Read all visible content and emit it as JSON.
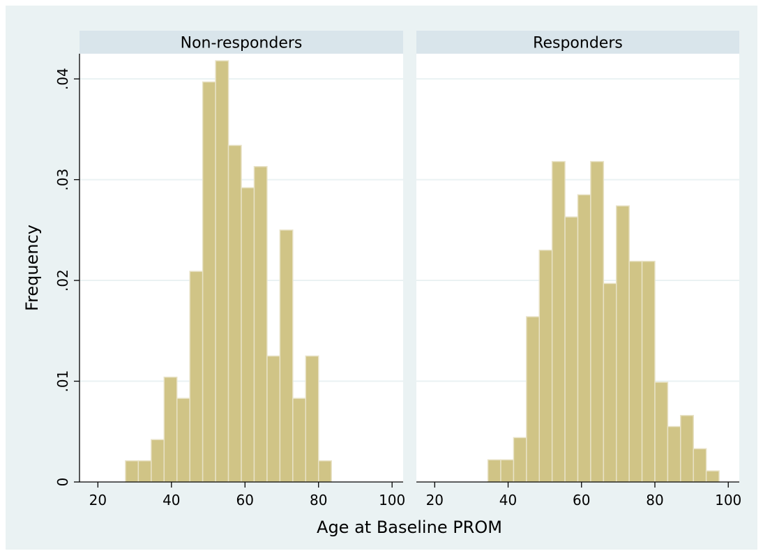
{
  "chart_data": {
    "type": "bar",
    "title": "",
    "xlabel": "Age at Baseline PROM",
    "ylabel": "Frequency",
    "xlim": [
      15,
      103
    ],
    "ylim": [
      0,
      0.0425
    ],
    "xticks": [
      "20",
      "40",
      "60",
      "80",
      "100"
    ],
    "yticks": [
      "0",
      ".01",
      ".02",
      ".03",
      ".04"
    ],
    "grid": true,
    "colors": {
      "background": "#eaf2f3",
      "plot_background": "#ffffff",
      "strip": "#d9e5eb",
      "bar_fill": "#d0c486",
      "bar_edge": "#e8e2c6",
      "gridline": "#eaf2f3",
      "axis": "#000000"
    },
    "bin_width": 3.5,
    "panels": [
      {
        "name": "Non-responders",
        "bins": [
          {
            "x": 27.5,
            "value": 0.0021
          },
          {
            "x": 31.0,
            "value": 0.0021
          },
          {
            "x": 34.5,
            "value": 0.0042
          },
          {
            "x": 38.0,
            "value": 0.0104
          },
          {
            "x": 41.5,
            "value": 0.0083
          },
          {
            "x": 45.0,
            "value": 0.0209
          },
          {
            "x": 48.5,
            "value": 0.0397
          },
          {
            "x": 52.0,
            "value": 0.0418
          },
          {
            "x": 55.5,
            "value": 0.0334
          },
          {
            "x": 59.0,
            "value": 0.0292
          },
          {
            "x": 62.5,
            "value": 0.0313
          },
          {
            "x": 66.0,
            "value": 0.0125
          },
          {
            "x": 69.5,
            "value": 0.025
          },
          {
            "x": 73.0,
            "value": 0.0083
          },
          {
            "x": 76.5,
            "value": 0.0125
          },
          {
            "x": 80.0,
            "value": 0.0021
          }
        ]
      },
      {
        "name": "Responders",
        "bins": [
          {
            "x": 34.5,
            "value": 0.0022
          },
          {
            "x": 38.0,
            "value": 0.0022
          },
          {
            "x": 41.5,
            "value": 0.0044
          },
          {
            "x": 45.0,
            "value": 0.0164
          },
          {
            "x": 48.5,
            "value": 0.023
          },
          {
            "x": 52.0,
            "value": 0.0318
          },
          {
            "x": 55.5,
            "value": 0.0263
          },
          {
            "x": 59.0,
            "value": 0.0285
          },
          {
            "x": 62.5,
            "value": 0.0318
          },
          {
            "x": 66.0,
            "value": 0.0197
          },
          {
            "x": 69.5,
            "value": 0.0274
          },
          {
            "x": 73.0,
            "value": 0.0219
          },
          {
            "x": 76.5,
            "value": 0.0219
          },
          {
            "x": 80.0,
            "value": 0.0099
          },
          {
            "x": 83.5,
            "value": 0.0055
          },
          {
            "x": 87.0,
            "value": 0.0066
          },
          {
            "x": 90.5,
            "value": 0.0033
          },
          {
            "x": 94.0,
            "value": 0.0011
          }
        ]
      }
    ]
  }
}
